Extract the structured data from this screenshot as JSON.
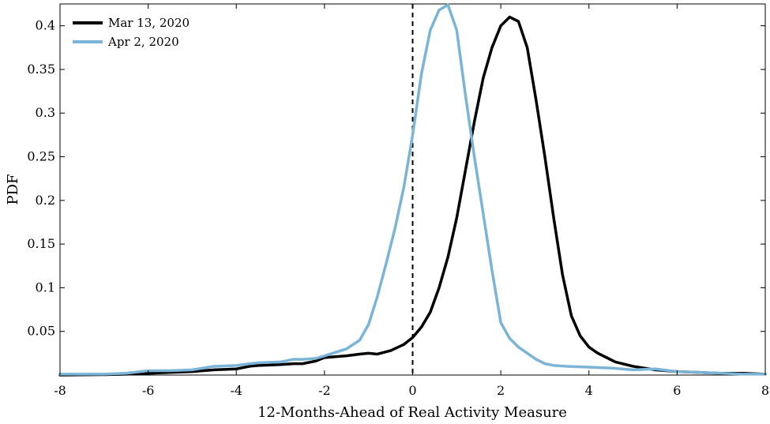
{
  "chart_data": {
    "type": "line",
    "xlabel": "12-Months-Ahead of Real Activity Measure",
    "ylabel": "PDF",
    "xlim": [
      -8,
      8
    ],
    "ylim": [
      0,
      0.425
    ],
    "xticks": [
      -8,
      -6,
      -4,
      -2,
      0,
      2,
      4,
      6,
      8
    ],
    "yticks": [
      0.05,
      0.1,
      0.15,
      0.2,
      0.25,
      0.3,
      0.35,
      0.4
    ],
    "xtick_labels": [
      "-8",
      "-6",
      "-4",
      "-2",
      "0",
      "2",
      "4",
      "6",
      "8"
    ],
    "ytick_labels": [
      "0.05",
      "0.1",
      "0.15",
      "0.2",
      "0.25",
      "0.3",
      "0.35",
      "0.4"
    ],
    "grid": false,
    "legend_position": "top-left",
    "vline": {
      "x": 0,
      "style": "dashed",
      "color": "#000000"
    },
    "series": [
      {
        "name": "Mar 13, 2020",
        "color": "#000000",
        "x": [
          -8,
          -7,
          -6.5,
          -6,
          -5.5,
          -5,
          -4.5,
          -4,
          -3.7,
          -3.5,
          -3,
          -2.7,
          -2.5,
          -2.2,
          -2,
          -1.5,
          -1.2,
          -1,
          -0.8,
          -0.5,
          -0.2,
          0,
          0.2,
          0.4,
          0.6,
          0.8,
          1,
          1.2,
          1.4,
          1.6,
          1.8,
          2,
          2.2,
          2.4,
          2.6,
          2.8,
          3,
          3.2,
          3.4,
          3.6,
          3.8,
          4,
          4.2,
          4.4,
          4.6,
          5,
          5.5,
          6,
          6.5,
          7,
          7.5,
          8
        ],
        "values": [
          0.0,
          0.0005,
          0.001,
          0.002,
          0.003,
          0.004,
          0.006,
          0.007,
          0.01,
          0.011,
          0.012,
          0.013,
          0.013,
          0.016,
          0.02,
          0.022,
          0.024,
          0.025,
          0.024,
          0.028,
          0.035,
          0.043,
          0.055,
          0.072,
          0.1,
          0.135,
          0.18,
          0.235,
          0.29,
          0.34,
          0.375,
          0.4,
          0.41,
          0.405,
          0.375,
          0.315,
          0.25,
          0.18,
          0.115,
          0.068,
          0.045,
          0.032,
          0.025,
          0.02,
          0.015,
          0.01,
          0.006,
          0.004,
          0.003,
          0.002,
          0.002,
          0.001
        ]
      },
      {
        "name": "Apr 2, 2020",
        "color": "#7ab4d6",
        "x": [
          -8,
          -7,
          -6.5,
          -6,
          -5.5,
          -5,
          -4.5,
          -4,
          -3.7,
          -3.5,
          -3,
          -2.7,
          -2.5,
          -2.2,
          -2,
          -1.5,
          -1.2,
          -1,
          -0.8,
          -0.6,
          -0.4,
          -0.2,
          0,
          0.2,
          0.4,
          0.6,
          0.8,
          1,
          1.2,
          1.4,
          1.6,
          1.8,
          2,
          2.2,
          2.4,
          2.6,
          2.8,
          3,
          3.2,
          3.5,
          4,
          4.5,
          5,
          5.5,
          6,
          6.5,
          7,
          7.5,
          8
        ],
        "values": [
          0.001,
          0.001,
          0.002,
          0.005,
          0.005,
          0.006,
          0.01,
          0.011,
          0.013,
          0.014,
          0.015,
          0.018,
          0.018,
          0.019,
          0.022,
          0.03,
          0.04,
          0.058,
          0.09,
          0.128,
          0.168,
          0.215,
          0.275,
          0.345,
          0.395,
          0.418,
          0.424,
          0.395,
          0.32,
          0.25,
          0.185,
          0.12,
          0.06,
          0.042,
          0.032,
          0.025,
          0.018,
          0.013,
          0.011,
          0.01,
          0.009,
          0.008,
          0.006,
          0.007,
          0.004,
          0.003,
          0.002,
          0.001,
          0.001
        ]
      }
    ]
  }
}
